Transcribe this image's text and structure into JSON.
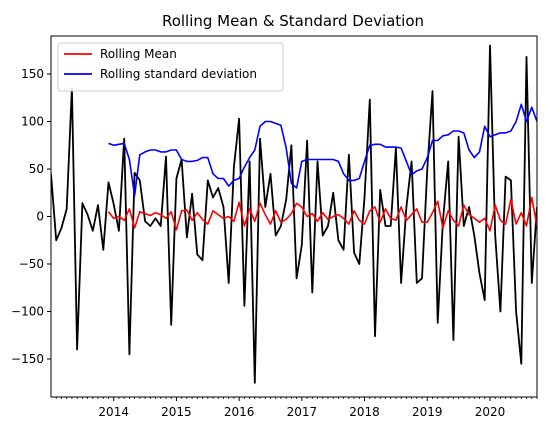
{
  "chart_data": {
    "type": "line",
    "title": "Rolling Mean & Standard Deviation",
    "xlabel": "",
    "ylabel": "",
    "x_ticks": [
      "2014",
      "2015",
      "2016",
      "2017",
      "2018",
      "2019",
      "2020"
    ],
    "y_ticks": [
      -150,
      -100,
      -50,
      0,
      50,
      100,
      150
    ],
    "xlim": [
      "2013-01",
      "2020-10"
    ],
    "ylim": [
      -190,
      190
    ],
    "grid": false,
    "legend_position": "top-left",
    "colors": {
      "original": "#000000",
      "rolling_mean": "#ff0000",
      "rolling_std": "#0000ff"
    },
    "series": [
      {
        "key": "original",
        "name": "",
        "x": [
          "2013-01",
          "2013-02",
          "2013-03",
          "2013-04",
          "2013-05",
          "2013-06",
          "2013-07",
          "2013-08",
          "2013-09",
          "2013-10",
          "2013-11",
          "2013-12",
          "2014-01",
          "2014-02",
          "2014-03",
          "2014-04",
          "2014-05",
          "2014-06",
          "2014-07",
          "2014-08",
          "2014-09",
          "2014-10",
          "2014-11",
          "2014-12",
          "2015-01",
          "2015-02",
          "2015-03",
          "2015-04",
          "2015-05",
          "2015-06",
          "2015-07",
          "2015-08",
          "2015-09",
          "2015-10",
          "2015-11",
          "2015-12",
          "2016-01",
          "2016-02",
          "2016-03",
          "2016-04",
          "2016-05",
          "2016-06",
          "2016-07",
          "2016-08",
          "2016-09",
          "2016-10",
          "2016-11",
          "2016-12",
          "2017-01",
          "2017-02",
          "2017-03",
          "2017-04",
          "2017-05",
          "2017-06",
          "2017-07",
          "2017-08",
          "2017-09",
          "2017-10",
          "2017-11",
          "2017-12",
          "2018-01",
          "2018-02",
          "2018-03",
          "2018-04",
          "2018-05",
          "2018-06",
          "2018-07",
          "2018-08",
          "2018-09",
          "2018-10",
          "2018-11",
          "2018-12",
          "2019-01",
          "2019-02",
          "2019-03",
          "2019-04",
          "2019-05",
          "2019-06",
          "2019-07",
          "2019-08",
          "2019-09",
          "2019-10",
          "2019-11",
          "2019-12",
          "2020-01",
          "2020-02",
          "2020-03",
          "2020-04",
          "2020-05",
          "2020-06",
          "2020-07",
          "2020-08",
          "2020-09",
          "2020-10"
        ],
        "values": [
          45,
          -25,
          -12,
          8,
          135,
          -140,
          14,
          2,
          -15,
          12,
          -35,
          36,
          13,
          -15,
          82,
          -145,
          46,
          38,
          -5,
          -10,
          -2,
          -10,
          63,
          -114,
          40,
          60,
          -22,
          24,
          -40,
          -46,
          38,
          20,
          30,
          10,
          -70,
          52,
          103,
          -94,
          58,
          -175,
          82,
          10,
          45,
          -20,
          -10,
          18,
          75,
          -65,
          -30,
          80,
          -80,
          58,
          -20,
          -10,
          25,
          -25,
          -35,
          65,
          -38,
          -50,
          20,
          123,
          -126,
          28,
          -10,
          -10,
          72,
          -70,
          10,
          58,
          -70,
          -65,
          50,
          132,
          -112,
          -5,
          58,
          -130,
          84,
          -10,
          10,
          -20,
          -60,
          -88,
          180,
          -20,
          -100,
          42,
          38,
          -100,
          -155,
          168,
          -70,
          10
        ]
      },
      {
        "key": "rolling_mean",
        "name": "Rolling Mean",
        "x": [
          "2013-12",
          "2014-01",
          "2014-02",
          "2014-03",
          "2014-04",
          "2014-05",
          "2014-06",
          "2014-07",
          "2014-08",
          "2014-09",
          "2014-10",
          "2014-11",
          "2014-12",
          "2015-01",
          "2015-02",
          "2015-03",
          "2015-04",
          "2015-05",
          "2015-06",
          "2015-07",
          "2015-08",
          "2015-09",
          "2015-10",
          "2015-11",
          "2015-12",
          "2016-01",
          "2016-02",
          "2016-03",
          "2016-04",
          "2016-05",
          "2016-06",
          "2016-07",
          "2016-08",
          "2016-09",
          "2016-10",
          "2016-11",
          "2016-12",
          "2017-01",
          "2017-02",
          "2017-03",
          "2017-04",
          "2017-05",
          "2017-06",
          "2017-07",
          "2017-08",
          "2017-09",
          "2017-10",
          "2017-11",
          "2017-12",
          "2018-01",
          "2018-02",
          "2018-03",
          "2018-04",
          "2018-05",
          "2018-06",
          "2018-07",
          "2018-08",
          "2018-09",
          "2018-10",
          "2018-11",
          "2018-12",
          "2019-01",
          "2019-02",
          "2019-03",
          "2019-04",
          "2019-05",
          "2019-06",
          "2019-07",
          "2019-08",
          "2019-09",
          "2019-10",
          "2019-11",
          "2019-12",
          "2020-01",
          "2020-02",
          "2020-03",
          "2020-04",
          "2020-05",
          "2020-06",
          "2020-07",
          "2020-08",
          "2020-09",
          "2020-10"
        ],
        "values": [
          5,
          -2,
          0,
          -4,
          8,
          -12,
          5,
          3,
          1,
          4,
          2,
          -2,
          5,
          -14,
          6,
          7,
          -4,
          4,
          -3,
          -8,
          6,
          2,
          -2,
          0,
          -5,
          15,
          -10,
          8,
          -5,
          14,
          2,
          -8,
          6,
          -6,
          -3,
          3,
          14,
          10,
          0,
          3,
          -5,
          4,
          -3,
          0,
          2,
          -2,
          -8,
          6,
          -4,
          -8,
          6,
          10,
          -6,
          8,
          -2,
          -4,
          10,
          -4,
          2,
          8,
          -6,
          -6,
          4,
          16,
          -12,
          6,
          -4,
          -10,
          12,
          2,
          -2,
          -6,
          -2,
          -15,
          12,
          -4,
          -8,
          18,
          -8,
          4,
          -10,
          20,
          -10
        ]
      },
      {
        "key": "rolling_std",
        "name": "Rolling standard deviation",
        "x": [
          "2013-12",
          "2014-01",
          "2014-02",
          "2014-03",
          "2014-04",
          "2014-05",
          "2014-06",
          "2014-07",
          "2014-08",
          "2014-09",
          "2014-10",
          "2014-11",
          "2014-12",
          "2015-01",
          "2015-02",
          "2015-03",
          "2015-04",
          "2015-05",
          "2015-06",
          "2015-07",
          "2015-08",
          "2015-09",
          "2015-10",
          "2015-11",
          "2015-12",
          "2016-01",
          "2016-02",
          "2016-03",
          "2016-04",
          "2016-05",
          "2016-06",
          "2016-07",
          "2016-08",
          "2016-09",
          "2016-10",
          "2016-11",
          "2016-12",
          "2017-01",
          "2017-02",
          "2017-03",
          "2017-04",
          "2017-05",
          "2017-06",
          "2017-07",
          "2017-08",
          "2017-09",
          "2017-10",
          "2017-11",
          "2017-12",
          "2018-01",
          "2018-02",
          "2018-03",
          "2018-04",
          "2018-05",
          "2018-06",
          "2018-07",
          "2018-08",
          "2018-09",
          "2018-10",
          "2018-11",
          "2018-12",
          "2019-01",
          "2019-02",
          "2019-03",
          "2019-04",
          "2019-05",
          "2019-06",
          "2019-07",
          "2019-08",
          "2019-09",
          "2019-10",
          "2019-11",
          "2019-12",
          "2020-01",
          "2020-02",
          "2020-03",
          "2020-04",
          "2020-05",
          "2020-06",
          "2020-07",
          "2020-08",
          "2020-09",
          "2020-10"
        ],
        "values": [
          77,
          75,
          76,
          77,
          60,
          22,
          65,
          68,
          70,
          70,
          68,
          68,
          70,
          70,
          60,
          58,
          58,
          59,
          62,
          62,
          45,
          40,
          40,
          32,
          38,
          40,
          52,
          62,
          70,
          95,
          100,
          100,
          98,
          96,
          72,
          35,
          30,
          58,
          60,
          60,
          60,
          60,
          60,
          60,
          58,
          45,
          38,
          38,
          40,
          58,
          75,
          76,
          76,
          73,
          73,
          73,
          72,
          58,
          44,
          48,
          50,
          62,
          80,
          80,
          85,
          86,
          90,
          90,
          88,
          70,
          62,
          68,
          95,
          84,
          86,
          88,
          88,
          90,
          100,
          118,
          100,
          115,
          100
        ]
      }
    ]
  }
}
